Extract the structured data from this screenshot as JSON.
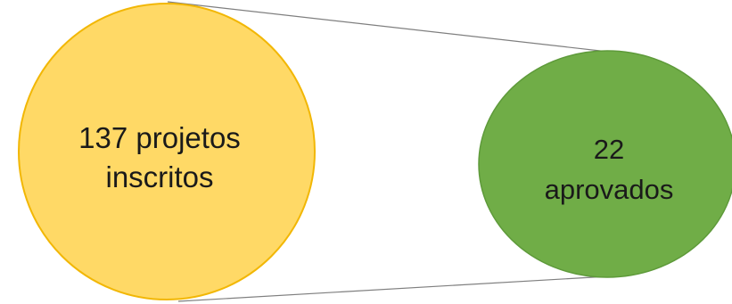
{
  "diagram": {
    "large_circle": {
      "line1": "137 projetos",
      "line2": "inscritos",
      "fill": "#FFD966",
      "stroke": "#F2B705"
    },
    "small_circle": {
      "line1": "22",
      "line2": "aprovados",
      "fill": "#70AD47",
      "stroke": "#5E9A3A"
    },
    "connector_color": "#7F7F7F"
  }
}
